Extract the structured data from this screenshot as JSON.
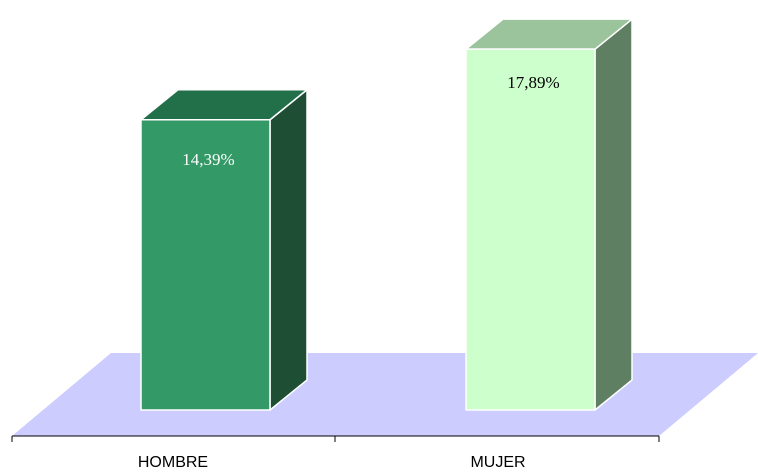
{
  "chart_data": {
    "type": "bar",
    "style": "3d-column",
    "categories": [
      "HOMBRE",
      "MUJER"
    ],
    "values": [
      14.39,
      17.89
    ],
    "data_labels": [
      "14,39%",
      "17,89%"
    ],
    "ylim": [
      0,
      20
    ],
    "title": "",
    "xlabel": "",
    "ylabel": "",
    "grid": false,
    "legend": "none",
    "floor_color": "#ccccff",
    "bars": [
      {
        "front": "#339966",
        "top": "#22704a",
        "side": "#1e4f34",
        "label_color": "#ffffff"
      },
      {
        "front": "#ccffcc",
        "top": "#9cc49c",
        "side": "#5f7f63",
        "label_color": "#000000"
      }
    ]
  }
}
